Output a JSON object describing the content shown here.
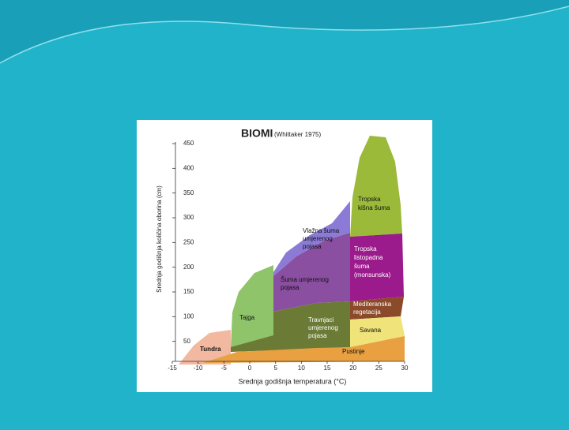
{
  "chart_data": {
    "type": "biome-diagram",
    "title": "BIOMI",
    "subtitle": "(Whittaker 1975)",
    "y_label": "Srednja godišnja količina oborina (cm)",
    "x_label": "Srednja godišnja temperatura (°C)",
    "xlim": [
      -15,
      30
    ],
    "xticks": [
      -15,
      -10,
      -5,
      0,
      5,
      10,
      15,
      20,
      25,
      30
    ],
    "ylim": [
      0,
      450
    ],
    "yticks": [
      50,
      100,
      150,
      200,
      250,
      300,
      350,
      400,
      450
    ],
    "regions": [
      {
        "lines": [
          "Tropska",
          "kišna šuma"
        ]
      },
      {
        "lines": [
          "Vlažna šuma",
          "umjerenog",
          "pojasa"
        ]
      },
      {
        "lines": [
          "Tropska",
          "listopadna",
          "šuma",
          "(monsunska)"
        ]
      },
      {
        "lines": [
          "Šuma umjerenog",
          "pojasa"
        ]
      },
      {
        "lines": [
          "Mediteranska",
          "regetacija"
        ]
      },
      {
        "lines": [
          "Tajga"
        ]
      },
      {
        "lines": [
          "Travnjaci",
          "umjerenog",
          "pojasa"
        ]
      },
      {
        "lines": [
          "Savana"
        ]
      },
      {
        "lines": [
          "Tundra"
        ]
      },
      {
        "lines": [
          "Pustinje"
        ]
      }
    ]
  }
}
